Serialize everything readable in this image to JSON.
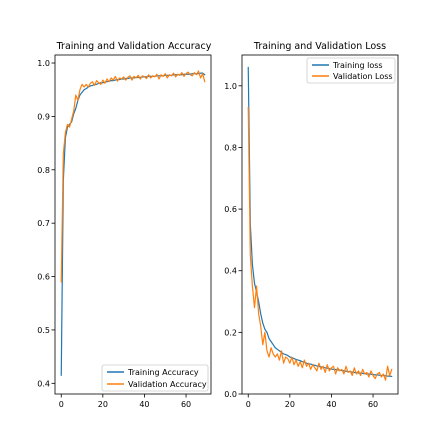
{
  "chart_data": [
    {
      "type": "line",
      "title": "Training and Validation Accuracy",
      "xlabel": "",
      "ylabel": "",
      "xlim": [
        -3,
        72
      ],
      "ylim": [
        0.38,
        1.015
      ],
      "xticks": [
        0,
        20,
        40,
        60
      ],
      "yticks": [
        0.4,
        0.5,
        0.6,
        0.7,
        0.8,
        0.9,
        1.0
      ],
      "ytick_labels": [
        "0.4",
        "0.5",
        "0.6",
        "0.7",
        "0.8",
        "0.9",
        "1.0"
      ],
      "grid": false,
      "legend_position": "lower-right",
      "series": [
        {
          "name": "Training Accuracy",
          "color": "#1f77b4",
          "x": [
            0,
            1,
            2,
            3,
            4,
            5,
            6,
            7,
            8,
            9,
            10,
            11,
            12,
            13,
            14,
            15,
            16,
            17,
            18,
            19,
            20,
            21,
            22,
            23,
            24,
            25,
            26,
            27,
            28,
            29,
            30,
            31,
            32,
            33,
            34,
            35,
            36,
            37,
            38,
            39,
            40,
            41,
            42,
            43,
            44,
            45,
            46,
            47,
            48,
            49,
            50,
            51,
            52,
            53,
            54,
            55,
            56,
            57,
            58,
            59,
            60,
            61,
            62,
            63,
            64,
            65,
            66,
            67,
            68,
            69
          ],
          "values": [
            0.415,
            0.78,
            0.86,
            0.88,
            0.885,
            0.89,
            0.905,
            0.915,
            0.93,
            0.94,
            0.945,
            0.95,
            0.952,
            0.955,
            0.957,
            0.958,
            0.96,
            0.96,
            0.962,
            0.963,
            0.963,
            0.964,
            0.965,
            0.966,
            0.967,
            0.967,
            0.968,
            0.969,
            0.969,
            0.97,
            0.97,
            0.971,
            0.971,
            0.972,
            0.972,
            0.972,
            0.973,
            0.973,
            0.973,
            0.974,
            0.974,
            0.974,
            0.975,
            0.975,
            0.975,
            0.975,
            0.976,
            0.976,
            0.976,
            0.976,
            0.977,
            0.977,
            0.977,
            0.977,
            0.978,
            0.978,
            0.978,
            0.978,
            0.978,
            0.979,
            0.979,
            0.979,
            0.979,
            0.98,
            0.98,
            0.98,
            0.98,
            0.981,
            0.981,
            0.978
          ]
        },
        {
          "name": "Validation Accuracy",
          "color": "#ff7f0e",
          "x": [
            0,
            1,
            2,
            3,
            4,
            5,
            6,
            7,
            8,
            9,
            10,
            11,
            12,
            13,
            14,
            15,
            16,
            17,
            18,
            19,
            20,
            21,
            22,
            23,
            24,
            25,
            26,
            27,
            28,
            29,
            30,
            31,
            32,
            33,
            34,
            35,
            36,
            37,
            38,
            39,
            40,
            41,
            42,
            43,
            44,
            45,
            46,
            47,
            48,
            49,
            50,
            51,
            52,
            53,
            54,
            55,
            56,
            57,
            58,
            59,
            60,
            61,
            62,
            63,
            64,
            65,
            66,
            67,
            68,
            69
          ],
          "values": [
            0.59,
            0.83,
            0.87,
            0.885,
            0.88,
            0.895,
            0.91,
            0.94,
            0.93,
            0.95,
            0.96,
            0.955,
            0.96,
            0.955,
            0.962,
            0.965,
            0.958,
            0.967,
            0.963,
            0.96,
            0.968,
            0.962,
            0.97,
            0.965,
            0.972,
            0.968,
            0.975,
            0.966,
            0.972,
            0.97,
            0.974,
            0.968,
            0.973,
            0.976,
            0.968,
            0.975,
            0.972,
            0.977,
            0.97,
            0.976,
            0.974,
            0.971,
            0.978,
            0.972,
            0.976,
            0.974,
            0.979,
            0.97,
            0.978,
            0.975,
            0.98,
            0.972,
            0.978,
            0.976,
            0.981,
            0.974,
            0.979,
            0.977,
            0.982,
            0.975,
            0.98,
            0.983,
            0.978,
            0.976,
            0.982,
            0.978,
            0.985,
            0.972,
            0.98,
            0.965
          ]
        }
      ]
    },
    {
      "type": "line",
      "title": "Training and Validation Loss",
      "xlabel": "",
      "ylabel": "",
      "xlim": [
        -3,
        72
      ],
      "ylim": [
        0.0,
        1.1
      ],
      "xticks": [
        0,
        20,
        40,
        60
      ],
      "yticks": [
        0.0,
        0.2,
        0.4,
        0.6,
        0.8,
        1.0
      ],
      "ytick_labels": [
        "0.0",
        "0.2",
        "0.4",
        "0.6",
        "0.8",
        "1.0"
      ],
      "grid": false,
      "legend_position": "upper-right",
      "series": [
        {
          "name": "Training loss",
          "color": "#1f77b4",
          "x": [
            0,
            1,
            2,
            3,
            4,
            5,
            6,
            7,
            8,
            9,
            10,
            11,
            12,
            13,
            14,
            15,
            16,
            17,
            18,
            19,
            20,
            21,
            22,
            23,
            24,
            25,
            26,
            27,
            28,
            29,
            30,
            31,
            32,
            33,
            34,
            35,
            36,
            37,
            38,
            39,
            40,
            41,
            42,
            43,
            44,
            45,
            46,
            47,
            48,
            49,
            50,
            51,
            52,
            53,
            54,
            55,
            56,
            57,
            58,
            59,
            60,
            61,
            62,
            63,
            64,
            65,
            66,
            67,
            68,
            69
          ],
          "values": [
            1.06,
            0.55,
            0.42,
            0.36,
            0.33,
            0.3,
            0.26,
            0.23,
            0.21,
            0.2,
            0.18,
            0.17,
            0.16,
            0.15,
            0.145,
            0.14,
            0.135,
            0.13,
            0.128,
            0.125,
            0.12,
            0.118,
            0.115,
            0.112,
            0.11,
            0.108,
            0.105,
            0.103,
            0.1,
            0.098,
            0.097,
            0.095,
            0.093,
            0.091,
            0.09,
            0.088,
            0.087,
            0.085,
            0.084,
            0.082,
            0.081,
            0.08,
            0.079,
            0.078,
            0.077,
            0.076,
            0.075,
            0.074,
            0.073,
            0.072,
            0.071,
            0.07,
            0.069,
            0.068,
            0.068,
            0.067,
            0.066,
            0.065,
            0.065,
            0.064,
            0.063,
            0.062,
            0.062,
            0.061,
            0.06,
            0.06,
            0.059,
            0.058,
            0.058,
            0.057
          ]
        },
        {
          "name": "Validation Loss",
          "color": "#ff7f0e",
          "x": [
            0,
            1,
            2,
            3,
            4,
            5,
            6,
            7,
            8,
            9,
            10,
            11,
            12,
            13,
            14,
            15,
            16,
            17,
            18,
            19,
            20,
            21,
            22,
            23,
            24,
            25,
            26,
            27,
            28,
            29,
            30,
            31,
            32,
            33,
            34,
            35,
            36,
            37,
            38,
            39,
            40,
            41,
            42,
            43,
            44,
            45,
            46,
            47,
            48,
            49,
            50,
            51,
            52,
            53,
            54,
            55,
            56,
            57,
            58,
            59,
            60,
            61,
            62,
            63,
            64,
            65,
            66,
            67,
            68,
            69
          ],
          "values": [
            0.93,
            0.45,
            0.35,
            0.28,
            0.35,
            0.26,
            0.22,
            0.16,
            0.2,
            0.14,
            0.12,
            0.15,
            0.13,
            0.12,
            0.13,
            0.11,
            0.14,
            0.1,
            0.12,
            0.115,
            0.1,
            0.12,
            0.095,
            0.11,
            0.09,
            0.105,
            0.085,
            0.11,
            0.09,
            0.1,
            0.08,
            0.095,
            0.085,
            0.075,
            0.1,
            0.08,
            0.09,
            0.07,
            0.095,
            0.075,
            0.085,
            0.09,
            0.065,
            0.085,
            0.075,
            0.08,
            0.065,
            0.09,
            0.07,
            0.075,
            0.06,
            0.085,
            0.065,
            0.075,
            0.06,
            0.08,
            0.065,
            0.07,
            0.055,
            0.075,
            0.06,
            0.05,
            0.065,
            0.07,
            0.055,
            0.065,
            0.045,
            0.09,
            0.06,
            0.08
          ]
        }
      ]
    }
  ]
}
